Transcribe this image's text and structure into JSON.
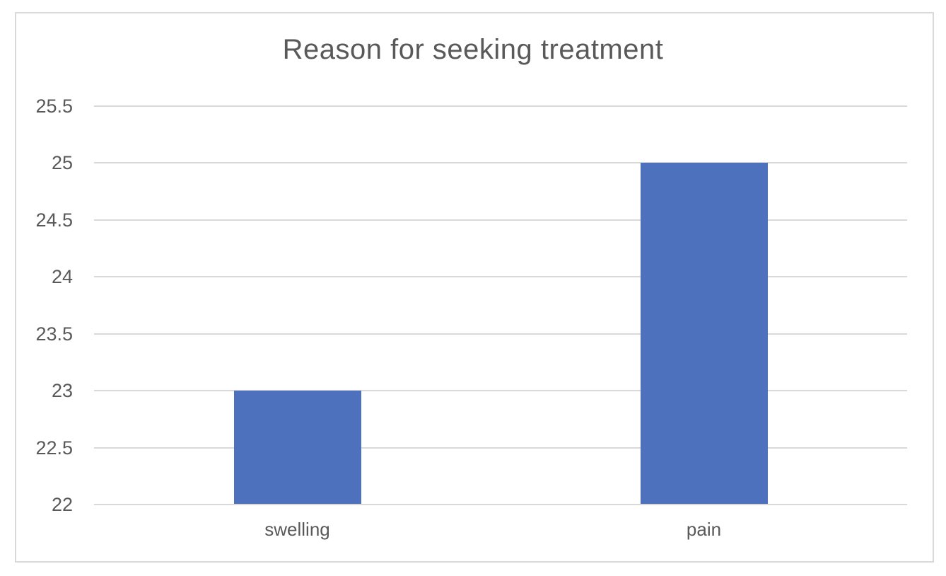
{
  "title": "Reason for seeking treatment",
  "colors": {
    "bar": "#4e71bd",
    "gridline": "#d9d9d9",
    "frame_border": "#d9d9d9",
    "text": "#595959",
    "background": "#ffffff"
  },
  "chart_data": {
    "type": "bar",
    "title": "Reason for seeking treatment",
    "categories": [
      "swelling",
      "pain"
    ],
    "values": [
      23,
      25
    ],
    "series": [
      {
        "name": "Reason for seeking treatment",
        "values": [
          23,
          25
        ]
      }
    ],
    "xlabel": "",
    "ylabel": "",
    "ylim": [
      22,
      25.5
    ],
    "ytick_step": 0.5,
    "yticks": [
      22,
      22.5,
      23,
      23.5,
      24,
      24.5,
      25,
      25.5
    ],
    "grid": true,
    "legend": false,
    "bar_color": "#4e71bd"
  }
}
